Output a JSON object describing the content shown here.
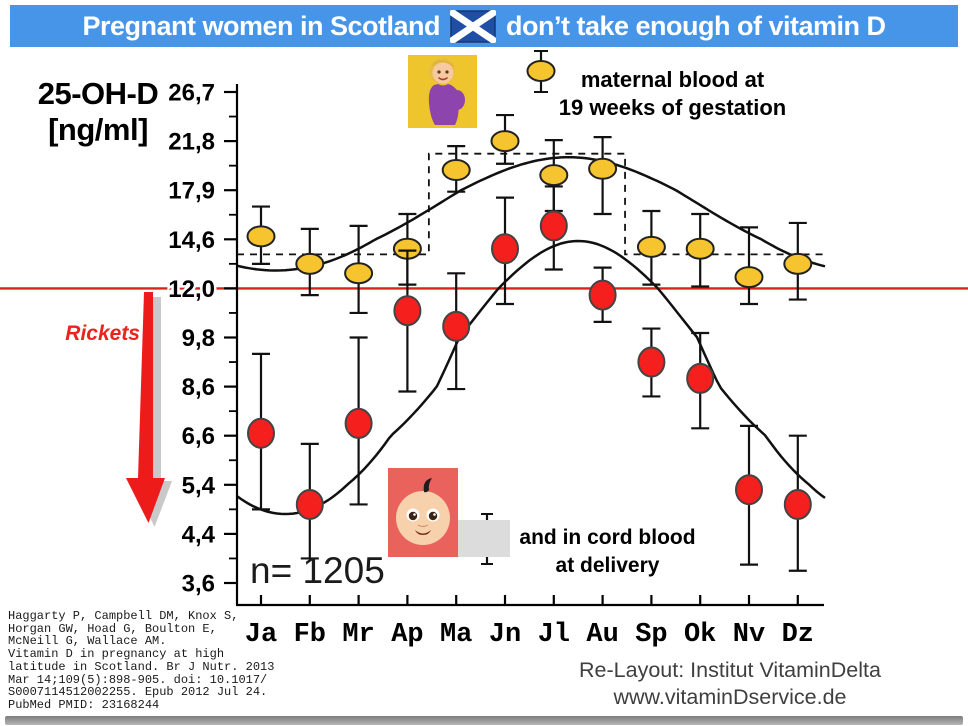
{
  "header": {
    "title_part1": "Pregnant women in Scotland",
    "title_part2": "don’t take enough of vitamin D",
    "flag_icon": "scotland-flag",
    "bg_color": "#4795E8",
    "text_color": "#FFFFFF"
  },
  "axis": {
    "ylabel_line1": "25-OH-D",
    "ylabel_line2": "[ng/ml]",
    "y_tick_labels": [
      "26,7",
      "21,8",
      "17,9",
      "14,6",
      "12,0",
      "9,8",
      "8,6",
      "6,6",
      "5,4",
      "4,4",
      "3,6"
    ],
    "x_tick_labels": [
      "Ja",
      "Fb",
      "Mr",
      "Ap",
      "Ma",
      "Jn",
      "Jl",
      "Au",
      "Sp",
      "Ok",
      "Nv",
      "Dz"
    ]
  },
  "reference_line": {
    "label": "Rickets",
    "value": 12.0,
    "color": "#DB2218"
  },
  "legend": {
    "maternal_line1": "maternal blood at",
    "maternal_line2": "19 weeks of gestation",
    "cord_line1": "and in cord blood",
    "cord_line2": "at delivery",
    "maternal_marker_color": "#F6C42E",
    "cord_marker_color": "#F5201E"
  },
  "annotations": {
    "n_label": "n= 1205"
  },
  "citation_lines": [
    "Haggarty P, Campbell DM, Knox S,",
    "Horgan GW, Hoad G, Boulton E,",
    "McNeill G, Wallace AM.",
    "Vitamin D in pregnancy at high",
    "latitude in Scotland. Br J Nutr. 2013",
    "Mar 14;109(5):898-905. doi: 10.1017/",
    "S0007114512002255. Epub 2012 Jul 24.",
    "PubMed PMID: 23168244"
  ],
  "footer": {
    "line1": "Re-Layout: Institut VitaminDelta",
    "line2": "www.vitaminDservice.de"
  },
  "chart_data": {
    "type": "scatter",
    "title": "Pregnant women in Scotland don’t take enough of vitamin D",
    "ylabel": "25-OH-D [ng/ml]",
    "y_ticks": [
      26.7,
      21.8,
      17.9,
      14.6,
      12.0,
      9.8,
      8.6,
      6.6,
      5.4,
      4.4,
      3.6
    ],
    "y_scale": "log-like (labels as printed)",
    "categories": [
      "Ja",
      "Fb",
      "Mr",
      "Ap",
      "Ma",
      "Jn",
      "Jl",
      "Au",
      "Sp",
      "Ok",
      "Nv",
      "Dz"
    ],
    "n": 1205,
    "reference_line_value": 12.0,
    "series": [
      {
        "name": "maternal blood at 19 weeks of gestation",
        "marker": "yellow-ellipse",
        "values": [
          14.8,
          13.3,
          12.8,
          14.1,
          19.5,
          21.8,
          19.1,
          19.6,
          14.2,
          14.1,
          12.6,
          13.3
        ],
        "err_lo": [
          13.3,
          11.7,
          10.9,
          12.2,
          17.8,
          20.0,
          16.5,
          16.3,
          12.2,
          12.1,
          11.3,
          11.5
        ],
        "err_hi": [
          16.8,
          15.3,
          15.5,
          16.3,
          21.4,
          24.4,
          21.9,
          22.2,
          16.5,
          16.3,
          15.4,
          15.7
        ]
      },
      {
        "name": "and in cord blood at delivery",
        "marker": "red-circle",
        "values": [
          6.7,
          5.0,
          7.1,
          11.0,
          10.3,
          14.1,
          15.5,
          11.7,
          9.2,
          8.8,
          5.3,
          5.0
        ],
        "err_lo": [
          4.9,
          4.0,
          5.0,
          8.4,
          8.5,
          11.3,
          13.0,
          10.5,
          8.2,
          6.9,
          3.9,
          3.8
        ],
        "err_hi": [
          9.4,
          6.4,
          9.8,
          14.0,
          12.8,
          17.4,
          18.2,
          13.1,
          10.2,
          10.0,
          7.0,
          6.6
        ]
      }
    ],
    "fit_curves": [
      {
        "series": "maternal",
        "shape": "seasonal-cosine",
        "geo_mean": 16.3,
        "log10_amplitude": 0.1,
        "peak_month_index": 6.3
      },
      {
        "series": "cord",
        "shape": "seasonal-cosine",
        "geo_mean": 8.35,
        "log10_amplitude": 0.24,
        "peak_month_index": 6.5
      }
    ],
    "dashed_step": {
      "baseline_value": 13.8,
      "elevated_value": 20.8,
      "elevated_from_month_index": 3.44,
      "elevated_to_month_index": 7.46
    },
    "legend_position": "top-right and bottom-middle",
    "grid": false
  }
}
